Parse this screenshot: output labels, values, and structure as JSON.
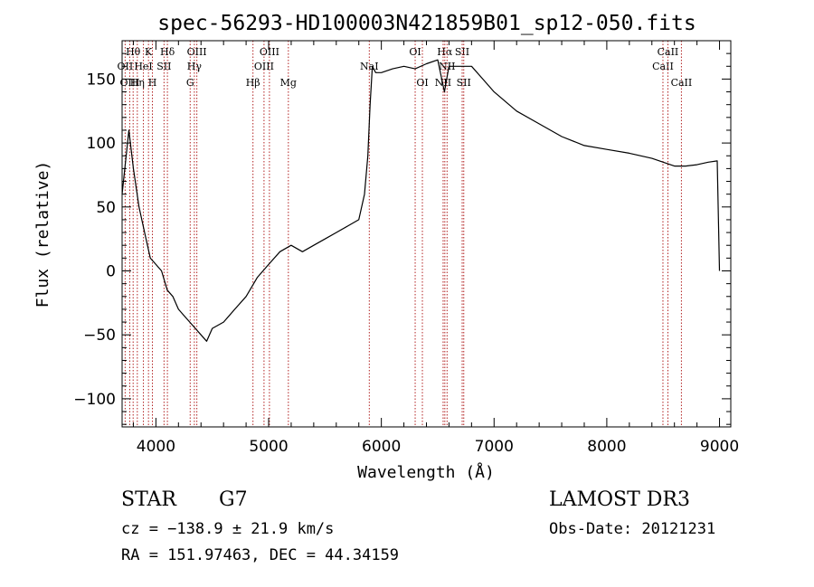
{
  "chart_data": {
    "type": "line",
    "title": "spec-56293-HD100003N421859B01_sp12-050.fits",
    "xlabel": "Wavelength (Å)",
    "ylabel": "Flux (relative)",
    "xlim": [
      3700,
      9100
    ],
    "ylim": [
      -122,
      180
    ],
    "x_ticks": [
      4000,
      5000,
      6000,
      7000,
      8000,
      9000
    ],
    "y_ticks": [
      -100,
      -50,
      0,
      50,
      100,
      150
    ],
    "x_tick_labels": [
      "4000",
      "5000",
      "6000",
      "7000",
      "8000",
      "9000"
    ],
    "y_tick_labels": [
      "−100",
      "−50",
      "0",
      "50",
      "100",
      "150"
    ],
    "grid": false,
    "series": [
      {
        "name": "flux",
        "color": "#000000",
        "x": [
          3700,
          3760,
          3800,
          3850,
          3900,
          3950,
          4000,
          4050,
          4100,
          4150,
          4200,
          4250,
          4300,
          4350,
          4400,
          4450,
          4500,
          4600,
          4700,
          4800,
          4900,
          5000,
          5100,
          5200,
          5300,
          5400,
          5500,
          5600,
          5700,
          5800,
          5850,
          5880,
          5900,
          5920,
          5950,
          6000,
          6100,
          6200,
          6300,
          6400,
          6500,
          6560,
          6600,
          6700,
          6800,
          6900,
          7000,
          7200,
          7400,
          7600,
          7800,
          8000,
          8200,
          8400,
          8500,
          8600,
          8700,
          8800,
          8900,
          8980,
          9000
        ],
        "y": [
          60,
          110,
          80,
          50,
          30,
          10,
          5,
          0,
          -15,
          -20,
          -30,
          -35,
          -40,
          -45,
          -50,
          -55,
          -45,
          -40,
          -30,
          -20,
          -5,
          5,
          15,
          20,
          15,
          20,
          25,
          30,
          35,
          40,
          60,
          90,
          130,
          160,
          155,
          155,
          158,
          160,
          158,
          162,
          165,
          140,
          160,
          160,
          160,
          150,
          140,
          125,
          115,
          105,
          98,
          95,
          92,
          88,
          85,
          82,
          82,
          83,
          85,
          86,
          0
        ]
      }
    ],
    "line_markers": [
      {
        "label": "Hθ",
        "wavelength": 3798,
        "row": 1
      },
      {
        "label": "OII",
        "wavelength": 3727,
        "row": 2
      },
      {
        "label": "OIII",
        "wavelength": 3768,
        "row": 3
      },
      {
        "label": "K",
        "wavelength": 3934,
        "row": 1
      },
      {
        "label": "HeI",
        "wavelength": 3889,
        "row": 2
      },
      {
        "label": "Hη",
        "wavelength": 3835,
        "row": 3
      },
      {
        "label": "H",
        "wavelength": 3969,
        "row": 3
      },
      {
        "label": "SII",
        "wavelength": 4072,
        "row": 2
      },
      {
        "label": "Hδ",
        "wavelength": 4102,
        "row": 1
      },
      {
        "label": "OIII",
        "wavelength": 4363,
        "row": 1
      },
      {
        "label": "Hγ",
        "wavelength": 4341,
        "row": 2
      },
      {
        "label": "G",
        "wavelength": 4304,
        "row": 3
      },
      {
        "label": "Hβ",
        "wavelength": 4861,
        "row": 3
      },
      {
        "label": "OIII",
        "wavelength": 5007,
        "row": 1
      },
      {
        "label": "OIII",
        "wavelength": 4959,
        "row": 2
      },
      {
        "label": "Mg",
        "wavelength": 5175,
        "row": 3
      },
      {
        "label": "NaI",
        "wavelength": 5893,
        "row": 2
      },
      {
        "label": "OI",
        "wavelength": 6300,
        "row": 1
      },
      {
        "label": "OI",
        "wavelength": 6364,
        "row": 3
      },
      {
        "label": "Hα",
        "wavelength": 6563,
        "row": 1
      },
      {
        "label": "NII",
        "wavelength": 6548,
        "row": 3
      },
      {
        "label": "SII",
        "wavelength": 6717,
        "row": 1
      },
      {
        "label": "NII",
        "wavelength": 6583,
        "row": 2
      },
      {
        "label": "SII",
        "wavelength": 6731,
        "row": 3
      },
      {
        "label": "CaII",
        "wavelength": 8498,
        "row": 2
      },
      {
        "label": "CaII",
        "wavelength": 8542,
        "row": 1
      },
      {
        "label": "CaII",
        "wavelength": 8662,
        "row": 3
      }
    ]
  },
  "info": {
    "object_class": "STAR",
    "subclass": "G7",
    "cz": "cz = −138.9 ± 21.9 km/s",
    "coords": "RA = 151.97463, DEC =  44.34159",
    "survey": "LAMOST DR3",
    "obs_date": "Obs-Date: 20121231"
  },
  "colors": {
    "spectrum": "#000000",
    "line_markers": "#b22222",
    "axes": "#000000"
  }
}
